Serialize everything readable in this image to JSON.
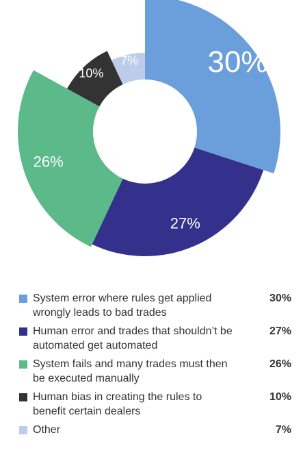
{
  "chart_data": {
    "type": "pie",
    "categories": [
      "System error where rules get applied wrongly leads to bad trades",
      "Human error and trades that shouldn’t be automated get automated",
      "System fails and many trades must then be executed manually",
      "Human bias in creating the rules to benefit certain dealers",
      "Other"
    ],
    "values": [
      30,
      27,
      26,
      10,
      7
    ],
    "slice_labels": [
      "30%",
      "27%",
      "26%",
      "10%",
      "7%"
    ],
    "colors": [
      "#6A9FDB",
      "#33318C",
      "#5CB98A",
      "#333333",
      "#BCCDEB"
    ],
    "title": "",
    "legend_placement": "bottom"
  },
  "legend": [
    {
      "label_lines": [
        "System error where rules get applied",
        "wrongly leads to bad trades"
      ],
      "value": "30%"
    },
    {
      "label_lines": [
        "Human error and trades that shouldn’t be",
        "automated get automated"
      ],
      "value": "27%"
    },
    {
      "label_lines": [
        "System fails and many trades must then",
        "be executed manually"
      ],
      "value": "26%"
    },
    {
      "label_lines": [
        "Human bias in creating the rules to",
        "benefit certain dealers"
      ],
      "value": "10%"
    },
    {
      "label_lines": [
        "Other"
      ],
      "value": "7%"
    }
  ]
}
